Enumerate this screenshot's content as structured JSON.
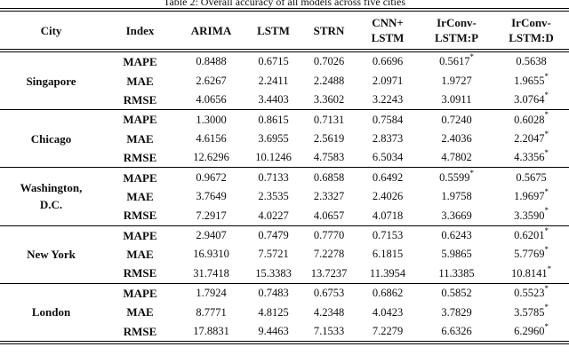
{
  "caption": "Table 2: Overall accuracy of all models across five cities",
  "table": {
    "columns": [
      "City",
      "Index",
      "ARIMA",
      "LSTM",
      "STRN",
      "CNN+\nLSTM",
      "IrConv-\nLSTM:P",
      "IrConv-\nLSTM:D"
    ],
    "groups": [
      {
        "city": "Singapore",
        "rows": [
          {
            "index": "MAPE",
            "values": [
              "0.8488",
              "0.6715",
              "0.7026",
              "0.6696",
              "0.5617*",
              "0.5638"
            ]
          },
          {
            "index": "MAE",
            "values": [
              "2.6267",
              "2.2411",
              "2.2488",
              "2.0971",
              "1.9727",
              "1.9655*"
            ]
          },
          {
            "index": "RMSE",
            "values": [
              "4.0656",
              "3.4403",
              "3.3602",
              "3.2243",
              "3.0911",
              "3.0764*"
            ]
          }
        ]
      },
      {
        "city": "Chicago",
        "rows": [
          {
            "index": "MAPE",
            "values": [
              "1.3000",
              "0.8615",
              "0.7131",
              "0.7584",
              "0.7240",
              "0.6028*"
            ]
          },
          {
            "index": "MAE",
            "values": [
              "4.6156",
              "3.6955",
              "2.5619",
              "2.8373",
              "2.4036",
              "2.2047*"
            ]
          },
          {
            "index": "RMSE",
            "values": [
              "12.6296",
              "10.1246",
              "4.7583",
              "6.5034",
              "4.7802",
              "4.3356*"
            ]
          }
        ]
      },
      {
        "city": "Washington,\nD.C.",
        "rows": [
          {
            "index": "MAPE",
            "values": [
              "0.9672",
              "0.7133",
              "0.6858",
              "0.6492",
              "0.5599*",
              "0.5675"
            ]
          },
          {
            "index": "MAE",
            "values": [
              "3.7649",
              "2.3535",
              "2.3327",
              "2.4026",
              "1.9758",
              "1.9697*"
            ]
          },
          {
            "index": "RMSE",
            "values": [
              "7.2917",
              "4.0227",
              "4.0657",
              "4.0718",
              "3.3669",
              "3.3590*"
            ]
          }
        ]
      },
      {
        "city": "New York",
        "rows": [
          {
            "index": "MAPE",
            "values": [
              "2.9407",
              "0.7479",
              "0.7770",
              "0.7153",
              "0.6243",
              "0.6201*"
            ]
          },
          {
            "index": "MAE",
            "values": [
              "16.9310",
              "7.5721",
              "7.2278",
              "6.1815",
              "5.9865",
              "5.7769*"
            ]
          },
          {
            "index": "RMSE",
            "values": [
              "31.7418",
              "15.3383",
              "13.7237",
              "11.3954",
              "11.3385",
              "10.8141*"
            ]
          }
        ]
      },
      {
        "city": "London",
        "rows": [
          {
            "index": "MAPE",
            "values": [
              "1.7924",
              "0.7483",
              "0.6753",
              "0.6862",
              "0.5852",
              "0.5523*"
            ]
          },
          {
            "index": "MAE",
            "values": [
              "8.7771",
              "4.8125",
              "4.2348",
              "4.0423",
              "3.7829",
              "3.5785*"
            ]
          },
          {
            "index": "RMSE",
            "values": [
              "17.8831",
              "9.4463",
              "7.1533",
              "7.2279",
              "6.6326",
              "6.2960*"
            ]
          }
        ]
      }
    ]
  }
}
